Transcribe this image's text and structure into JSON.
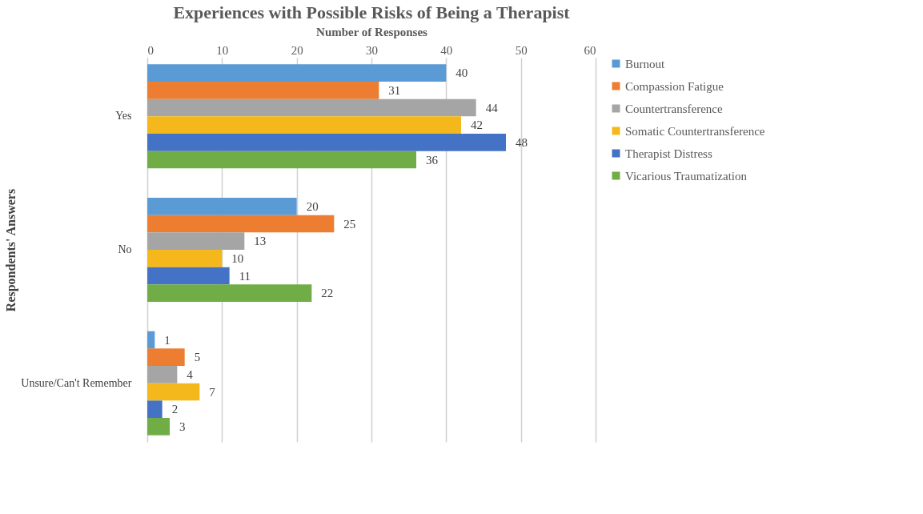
{
  "chart_data": {
    "type": "bar",
    "orientation": "horizontal",
    "title": "Experiences with Possible Risks of Being a Therapist",
    "xlabel": "Number of Responses",
    "ylabel": "Respondents' Answers",
    "categories": [
      "Yes",
      "No",
      "Unsure/Can't Remember"
    ],
    "series": [
      {
        "name": "Burnout",
        "color": "#5b9bd5",
        "values": [
          40,
          20,
          1
        ]
      },
      {
        "name": "Compassion Fatigue",
        "color": "#ed7d31",
        "values": [
          31,
          25,
          5
        ]
      },
      {
        "name": "Countertransference",
        "color": "#a5a5a5",
        "values": [
          44,
          13,
          4
        ]
      },
      {
        "name": "Somatic Countertransference",
        "color": "#f5b81c",
        "values": [
          42,
          10,
          7
        ]
      },
      {
        "name": "Therapist Distress",
        "color": "#4472c4",
        "values": [
          48,
          11,
          2
        ]
      },
      {
        "name": "Vicarious Traumatization",
        "color": "#70ad47",
        "values": [
          36,
          22,
          3
        ]
      }
    ],
    "xlim": [
      0,
      60
    ],
    "xticks": [
      0,
      10,
      20,
      30,
      40,
      50,
      60
    ],
    "grid": "x",
    "legend": "right",
    "data_labels": true
  }
}
